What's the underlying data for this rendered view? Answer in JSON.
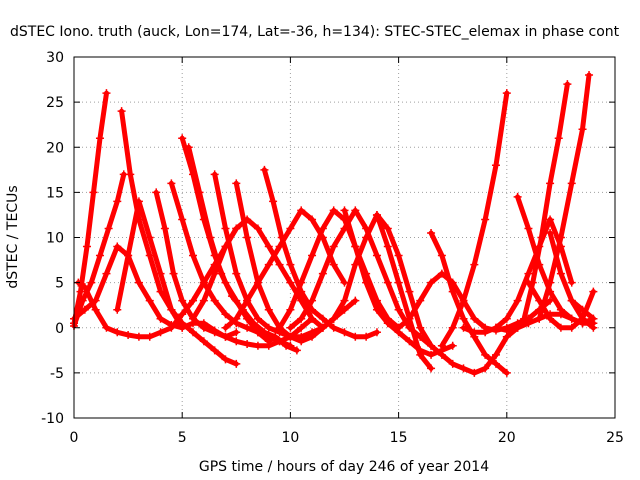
{
  "chart_data": {
    "type": "scatter",
    "title": "dSTEC Iono. truth (auck, Lon=174, Lat=-36, h=134): STEC-STEC_elemax in phase cont",
    "xlabel": "GPS time / hours of day 246 of year 2014",
    "ylabel": "dSTEC  / TECUs",
    "xlim": [
      0,
      25
    ],
    "ylim": [
      -10,
      30
    ],
    "xticks": [
      0,
      5,
      10,
      15,
      20,
      25
    ],
    "yticks": [
      -10,
      -5,
      0,
      5,
      10,
      15,
      20,
      25,
      30
    ],
    "xtick_labels": [
      "0",
      "5",
      "10",
      "15",
      "20",
      "25"
    ],
    "ytick_labels": [
      "-10",
      "-5",
      "0",
      "5",
      "10",
      "15",
      "20",
      "25",
      "30"
    ],
    "grid": true,
    "marker": "plus",
    "color": "#ff0000",
    "series": [
      {
        "x": [
          0.0,
          0.3,
          0.6,
          0.9,
          1.2,
          1.5
        ],
        "y": [
          0.5,
          4,
          9,
          15,
          21,
          26
        ]
      },
      {
        "x": [
          0.0,
          0.4,
          0.8,
          1.2,
          1.6,
          2.0,
          2.3
        ],
        "y": [
          0.2,
          3,
          5,
          8,
          11,
          14,
          17
        ]
      },
      {
        "x": [
          0.2,
          0.5,
          1.0,
          1.5,
          2.0,
          2.5,
          3.0,
          3.5,
          4.0,
          4.5,
          5.0,
          5.5,
          6.0,
          6.5,
          7.0,
          7.5
        ],
        "y": [
          5,
          4.5,
          2,
          0,
          -0.5,
          -0.8,
          -1,
          -1,
          -0.5,
          0,
          1.5,
          3,
          5,
          7,
          9,
          11
        ]
      },
      {
        "x": [
          0.0,
          0.5,
          1.0,
          1.5,
          2.0,
          2.5,
          3.0,
          3.5,
          4.0,
          4.5,
          5.0,
          5.5,
          6.0,
          6.5,
          7.0,
          7.5
        ],
        "y": [
          1,
          2,
          3,
          6,
          9,
          8,
          5,
          3,
          1,
          0.3,
          0,
          0.5,
          0.5,
          -0.3,
          -1,
          -0.5
        ]
      },
      {
        "x": [
          2.2,
          2.6,
          3.0,
          3.5,
          4.0,
          4.5,
          5.0,
          5.5,
          6.0,
          6.5,
          7.0,
          7.5
        ],
        "y": [
          24,
          17,
          12,
          8,
          4,
          2,
          0.5,
          -0.5,
          -1.5,
          -2.5,
          -3.5,
          -4
        ]
      },
      {
        "x": [
          2.0,
          2.5,
          3.0,
          3.5,
          4.0,
          4.5,
          5.0
        ],
        "y": [
          2,
          8,
          14,
          10,
          6,
          2,
          0
        ]
      },
      {
        "x": [
          3.8,
          4.2,
          4.6,
          5.0,
          5.5,
          6.0,
          6.5,
          7.0,
          7.5,
          8.0,
          8.5,
          9.0,
          9.5,
          10.0,
          10.5,
          11.0
        ],
        "y": [
          15,
          11,
          6,
          3,
          1,
          0,
          -0.5,
          -1,
          -1.5,
          -1.8,
          -2,
          -2,
          -1.5,
          -1,
          0,
          1
        ]
      },
      {
        "x": [
          4.5,
          5.0,
          5.5,
          6.0,
          6.5,
          7.0,
          7.5,
          8.0,
          8.5,
          9.0,
          9.5,
          10.0
        ],
        "y": [
          16,
          12,
          8,
          5,
          3,
          1.5,
          0.5,
          0,
          -0.5,
          -1,
          -1.5,
          -2
        ]
      },
      {
        "x": [
          5.0,
          5.5,
          6.0,
          6.5,
          7.0,
          7.5,
          8.0,
          8.5,
          9.0
        ],
        "y": [
          21,
          17,
          12,
          8,
          5,
          3,
          1,
          -0.5,
          -1.5
        ]
      },
      {
        "x": [
          5.3,
          5.8,
          6.3,
          6.8,
          7.3,
          7.8,
          8.3,
          8.8,
          9.3,
          9.8,
          10.3
        ],
        "y": [
          20,
          15,
          10,
          6,
          3.5,
          2,
          0.5,
          -0.5,
          -1,
          -2,
          -2.5
        ]
      },
      {
        "x": [
          6.5,
          7.0,
          7.5,
          8.0,
          8.5,
          9.0,
          9.5,
          10.0,
          10.5,
          11.0,
          11.5,
          12.0
        ],
        "y": [
          17,
          11,
          6,
          3,
          1,
          0,
          -0.5,
          -1,
          -1,
          -0.5,
          0,
          1
        ]
      },
      {
        "x": [
          7.5,
          8.0,
          8.5,
          9.0,
          9.5,
          10.0,
          10.5,
          11.0,
          11.5,
          12.0,
          12.5,
          13.0
        ],
        "y": [
          16,
          10,
          5,
          2,
          0,
          -1,
          -1.5,
          -1,
          0,
          1,
          2,
          3
        ]
      },
      {
        "x": [
          5.5,
          6.0,
          6.5,
          7.0,
          7.5,
          8.0,
          8.5,
          9.0,
          9.5,
          10.0,
          10.5,
          11.0,
          11.5
        ],
        "y": [
          1,
          3,
          6,
          9,
          11,
          12,
          11,
          9,
          7,
          5,
          3,
          1,
          0
        ]
      },
      {
        "x": [
          8.8,
          9.2,
          9.6,
          10.0,
          10.5,
          11.0,
          11.5,
          12.0,
          12.5,
          13.0,
          13.5,
          14.0
        ],
        "y": [
          17.5,
          14,
          10,
          7,
          4,
          2,
          1,
          0,
          -0.5,
          -1,
          -1,
          -0.5
        ]
      },
      {
        "x": [
          7.0,
          7.5,
          8.0,
          8.5,
          9.0,
          9.5,
          10.0,
          10.5,
          11.0,
          11.5,
          12.0,
          12.5
        ],
        "y": [
          0,
          1,
          3,
          5,
          7,
          9,
          11,
          13,
          12,
          10,
          7,
          5
        ]
      },
      {
        "x": [
          9.5,
          10.0,
          10.5,
          11.0,
          11.5,
          12.0,
          12.5,
          13.0,
          13.5,
          14.0,
          14.5,
          15.0
        ],
        "y": [
          0,
          2,
          5,
          8,
          11,
          13,
          12,
          9,
          6,
          3,
          1,
          0
        ]
      },
      {
        "x": [
          10.0,
          10.5,
          11.0,
          11.5,
          12.0,
          12.5,
          13.0,
          13.5,
          14.0,
          14.5,
          15.0,
          15.5,
          16.0
        ],
        "y": [
          0,
          1,
          3,
          6,
          9,
          11,
          13,
          11,
          8,
          5,
          2,
          0,
          -1
        ]
      },
      {
        "x": [
          12.0,
          12.5,
          13.0,
          13.5,
          14.0,
          14.5,
          15.0,
          15.5,
          16.0,
          16.5
        ],
        "y": [
          1,
          3,
          7,
          10,
          12.5,
          11,
          8,
          4,
          0,
          -2
        ]
      },
      {
        "x": [
          12.5,
          13.0,
          13.5,
          14.0,
          14.5,
          15.0,
          15.5,
          16.0,
          16.5,
          17.0,
          17.5
        ],
        "y": [
          13,
          9,
          5,
          2,
          0.5,
          -0.5,
          -1.5,
          -2.5,
          -3,
          -2.5,
          -2
        ]
      },
      {
        "x": [
          14.0,
          14.5,
          15.0,
          15.5,
          16.0,
          16.5
        ],
        "y": [
          12.5,
          9,
          5,
          1,
          -3,
          -4.5
        ]
      },
      {
        "x": [
          15.0,
          15.5,
          16.0,
          16.5,
          17.0,
          17.5,
          18.0,
          18.5,
          19.0,
          19.5,
          20.0,
          20.5,
          21.0
        ],
        "y": [
          0,
          1,
          3,
          5,
          6,
          5,
          3,
          1,
          0,
          -0.3,
          0,
          0.5,
          1
        ]
      },
      {
        "x": [
          16.5,
          17.0,
          17.5,
          18.0,
          18.5,
          19.0,
          19.5,
          20.0
        ],
        "y": [
          10.5,
          8,
          4,
          1,
          -1,
          -3,
          -4,
          -5
        ]
      },
      {
        "x": [
          16.0,
          16.5,
          17.0,
          17.5,
          18.0,
          18.5,
          19.0,
          19.5,
          20.0,
          20.5,
          21.0,
          21.5,
          22.0
        ],
        "y": [
          -1,
          -2,
          -3,
          -4,
          -4.5,
          -5,
          -4.5,
          -3,
          -1,
          0,
          1,
          2,
          3
        ]
      },
      {
        "x": [
          17.0,
          17.5,
          18.0,
          18.5,
          19.0,
          19.5,
          20.0
        ],
        "y": [
          -2,
          0,
          3,
          7,
          12,
          18,
          26
        ]
      },
      {
        "x": [
          18.0,
          18.5,
          19.0,
          19.5,
          20.0,
          20.5,
          21.0,
          21.5,
          22.0,
          22.5,
          23.0
        ],
        "y": [
          0,
          -0.5,
          -0.5,
          0,
          1,
          3,
          6,
          9,
          12,
          9,
          5
        ]
      },
      {
        "x": [
          19.5,
          20.0,
          20.5,
          21.0,
          21.5,
          22.0,
          22.5,
          23.0,
          23.5,
          24.0
        ],
        "y": [
          0,
          -0.3,
          0,
          0.5,
          1,
          1.5,
          1.5,
          1,
          0.5,
          0.5
        ]
      },
      {
        "x": [
          20.5,
          21.0,
          21.5,
          22.0,
          22.5,
          23.0,
          23.5,
          24.0
        ],
        "y": [
          14.5,
          11,
          7,
          4,
          2,
          1,
          0.5,
          1
        ]
      },
      {
        "x": [
          20.8,
          21.2,
          21.6,
          22.0,
          22.4,
          22.8
        ],
        "y": [
          1,
          5,
          10,
          16,
          21,
          27
        ]
      },
      {
        "x": [
          21.5,
          22.0,
          22.5,
          23.0,
          23.5,
          23.8
        ],
        "y": [
          1,
          5,
          10,
          16,
          22,
          28
        ]
      },
      {
        "x": [
          21.0,
          21.5,
          22.0,
          22.5,
          23.0,
          23.5,
          24.0
        ],
        "y": [
          5,
          3,
          1,
          0,
          0,
          1,
          4
        ]
      },
      {
        "x": [
          22.0,
          22.5,
          23.0,
          23.5,
          24.0
        ],
        "y": [
          10.5,
          6,
          3,
          1,
          0
        ]
      },
      {
        "x": [
          23.0,
          23.5,
          24.0
        ],
        "y": [
          3,
          2,
          1
        ]
      }
    ]
  }
}
